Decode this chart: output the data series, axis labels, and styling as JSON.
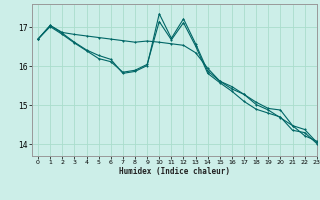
{
  "title": "",
  "xlabel": "Humidex (Indice chaleur)",
  "ylabel": "",
  "background_color": "#cceee8",
  "grid_color": "#aaddcc",
  "line_color": "#006666",
  "xlim": [
    -0.5,
    23
  ],
  "ylim": [
    13.7,
    17.6
  ],
  "xticks": [
    0,
    1,
    2,
    3,
    4,
    5,
    6,
    7,
    8,
    9,
    10,
    11,
    12,
    13,
    14,
    15,
    16,
    17,
    18,
    19,
    20,
    21,
    22,
    23
  ],
  "yticks": [
    14,
    15,
    16,
    17
  ],
  "line1_y": [
    16.7,
    17.05,
    16.87,
    16.82,
    16.78,
    16.74,
    16.7,
    16.66,
    16.62,
    16.65,
    16.62,
    16.58,
    16.54,
    16.35,
    15.95,
    15.62,
    15.42,
    15.28,
    15.02,
    14.88,
    14.68,
    14.48,
    14.22,
    14.08
  ],
  "line2_y": [
    16.7,
    17.05,
    16.85,
    16.62,
    16.42,
    16.28,
    16.18,
    15.82,
    15.87,
    16.02,
    17.35,
    16.72,
    17.22,
    16.58,
    15.88,
    15.62,
    15.48,
    15.28,
    15.08,
    14.92,
    14.88,
    14.48,
    14.38,
    14.05
  ],
  "line3_y": [
    16.7,
    17.02,
    16.82,
    16.6,
    16.4,
    16.2,
    16.12,
    15.85,
    15.9,
    16.05,
    17.15,
    16.68,
    17.12,
    16.52,
    15.82,
    15.58,
    15.36,
    15.1,
    14.9,
    14.8,
    14.7,
    14.36,
    14.3,
    14.02
  ]
}
